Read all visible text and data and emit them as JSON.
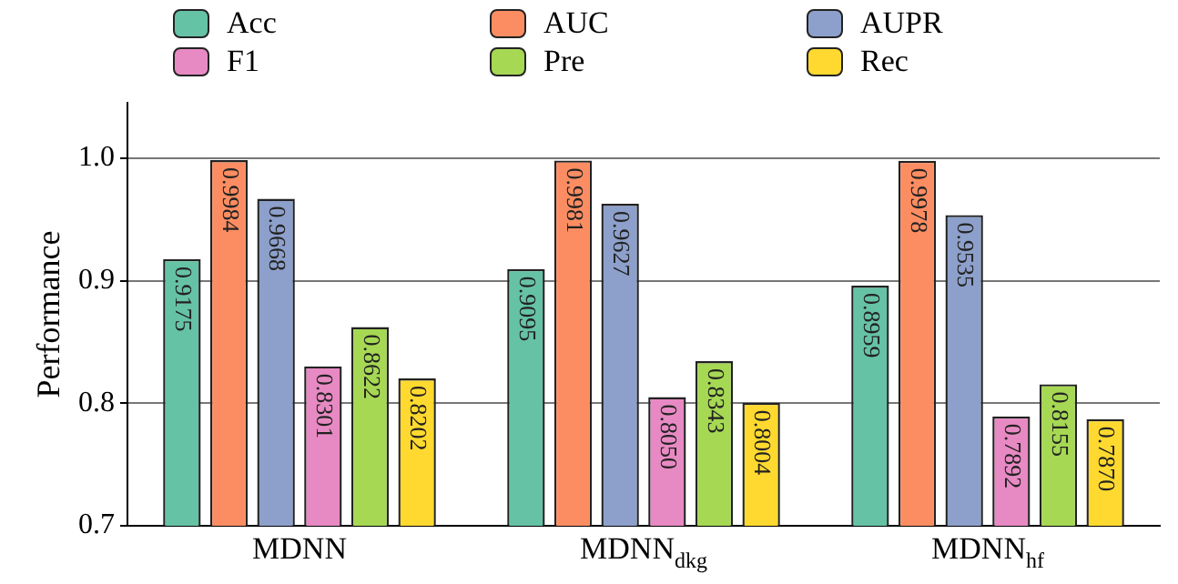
{
  "chart_data": {
    "type": "bar",
    "ylabel": "Performance",
    "categories": [
      "MDNN",
      "MDNN$_{dkg}$",
      "MDNN$_{hf}$"
    ],
    "series": [
      {
        "name": "Acc",
        "color": "#66c2a5",
        "values": [
          0.9175,
          0.9095,
          0.8959
        ],
        "value_labels": [
          "0.9175",
          "0.9095",
          "0.8959"
        ]
      },
      {
        "name": "AUC",
        "color": "#fc8d62",
        "values": [
          0.9984,
          0.9981,
          0.9978
        ],
        "value_labels": [
          "0.9984",
          "0.9981",
          "0.9978"
        ]
      },
      {
        "name": "AUPR",
        "color": "#8da0cb",
        "values": [
          0.9668,
          0.9627,
          0.9535
        ],
        "value_labels": [
          "0.9668",
          "0.9627",
          "0.9535"
        ]
      },
      {
        "name": "F1",
        "color": "#e78ac3",
        "values": [
          0.8301,
          0.805,
          0.7892
        ],
        "value_labels": [
          "0.8301",
          "0.8050",
          "0.7892"
        ]
      },
      {
        "name": "Pre",
        "color": "#a6d854",
        "values": [
          0.8622,
          0.8343,
          0.8155
        ],
        "value_labels": [
          "0.8622",
          "0.8343",
          "0.8155"
        ]
      },
      {
        "name": "Rec",
        "color": "#ffd92f",
        "values": [
          0.8202,
          0.8004,
          0.787
        ],
        "value_labels": [
          "0.8202",
          "0.8004",
          "0.7870"
        ]
      }
    ],
    "ylim": [
      0.7,
      1.045
    ],
    "yticks": [
      0.7,
      0.8,
      0.9,
      {
        "value": 1,
        "label": "1.0"
      }
    ],
    "grid": "y",
    "legend": "top"
  }
}
